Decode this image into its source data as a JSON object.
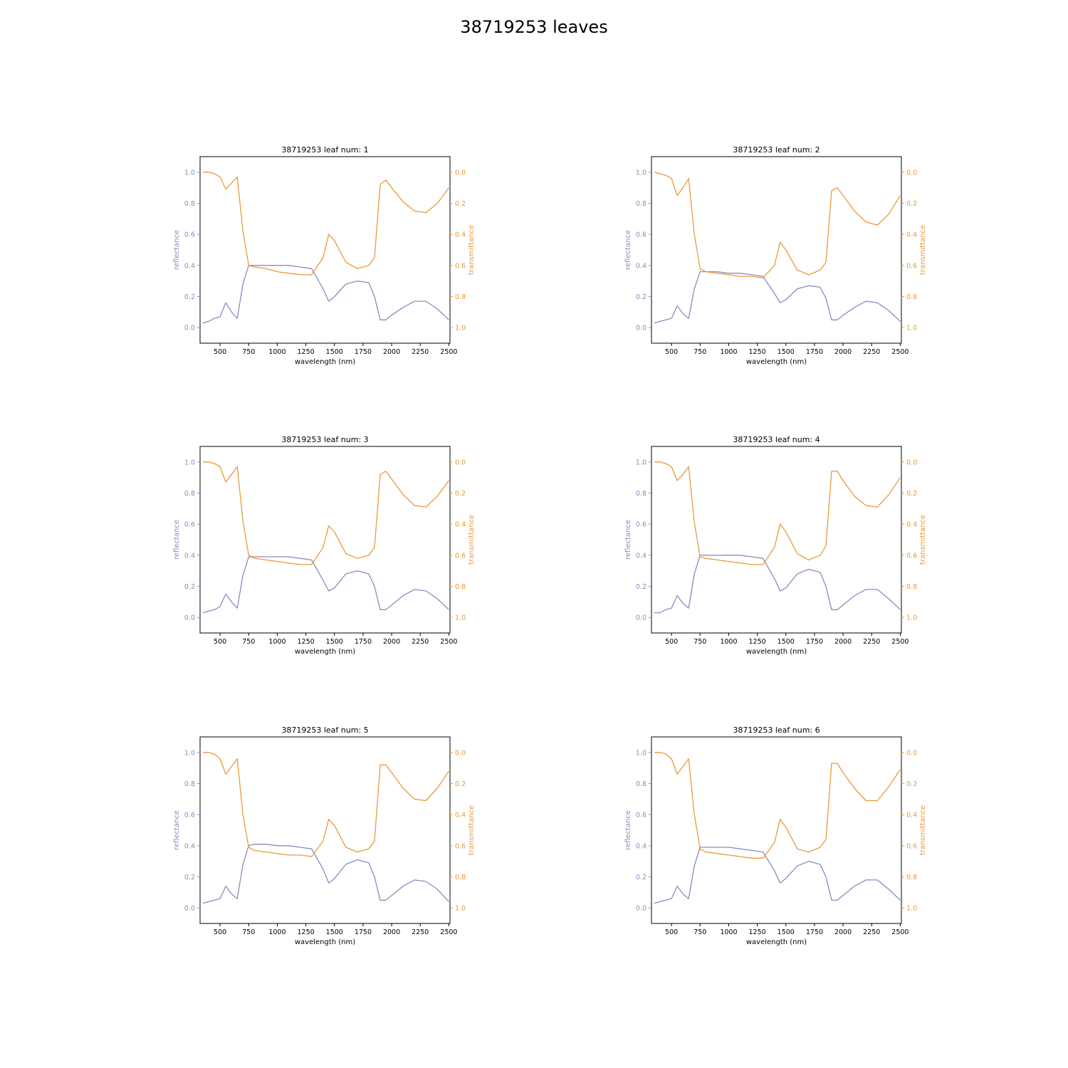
{
  "figure": {
    "title": "38719253 leaves",
    "colors": {
      "reflectance": "#8f88c0",
      "transmittance": "#e99a3a",
      "axes": "#000000"
    }
  },
  "chart_data": [
    {
      "type": "line",
      "title": "38719253 leaf num: 1",
      "xlabel": "wavelength (nm)",
      "ylabel_left": "reflectance",
      "ylabel_right": "transmittance",
      "xlim": [
        325,
        2510
      ],
      "ylim_left": [
        -0.1,
        1.1
      ],
      "ylim_right": [
        1.1,
        -0.1
      ],
      "right_axis_inverted": true,
      "xticks": [
        500,
        750,
        1000,
        1250,
        1500,
        1750,
        2000,
        2250,
        2500
      ],
      "yticks_left": [
        0.0,
        0.2,
        0.4,
        0.6,
        0.8,
        1.0
      ],
      "yticks_right": [
        0.0,
        0.2,
        0.4,
        0.6,
        0.8,
        1.0
      ],
      "grid": false,
      "x": [
        350,
        400,
        450,
        500,
        550,
        600,
        650,
        700,
        750,
        800,
        900,
        1000,
        1100,
        1200,
        1300,
        1400,
        1450,
        1500,
        1600,
        1700,
        1800,
        1850,
        1900,
        1950,
        2000,
        2100,
        2200,
        2300,
        2400,
        2500
      ],
      "series": [
        {
          "name": "reflectance",
          "axis": "left",
          "values": [
            0.03,
            0.04,
            0.06,
            0.07,
            0.16,
            0.1,
            0.06,
            0.28,
            0.4,
            0.4,
            0.4,
            0.4,
            0.4,
            0.39,
            0.38,
            0.25,
            0.17,
            0.2,
            0.28,
            0.3,
            0.29,
            0.2,
            0.05,
            0.05,
            0.08,
            0.13,
            0.17,
            0.17,
            0.12,
            0.05
          ]
        },
        {
          "name": "transmittance",
          "axis": "right",
          "values": [
            0.0,
            0.0,
            0.01,
            0.03,
            0.11,
            0.07,
            0.03,
            0.38,
            0.6,
            0.61,
            0.62,
            0.64,
            0.65,
            0.66,
            0.66,
            0.55,
            0.4,
            0.44,
            0.58,
            0.62,
            0.6,
            0.55,
            0.08,
            0.05,
            0.1,
            0.19,
            0.25,
            0.26,
            0.2,
            0.1
          ]
        }
      ]
    },
    {
      "type": "line",
      "title": "38719253 leaf num: 2",
      "xlabel": "wavelength (nm)",
      "ylabel_left": "reflectance",
      "ylabel_right": "transmittance",
      "xlim": [
        325,
        2510
      ],
      "ylim_left": [
        -0.1,
        1.1
      ],
      "ylim_right": [
        1.1,
        -0.1
      ],
      "right_axis_inverted": true,
      "xticks": [
        500,
        750,
        1000,
        1250,
        1500,
        1750,
        2000,
        2250,
        2500
      ],
      "yticks_left": [
        0.0,
        0.2,
        0.4,
        0.6,
        0.8,
        1.0
      ],
      "yticks_right": [
        0.0,
        0.2,
        0.4,
        0.6,
        0.8,
        1.0
      ],
      "grid": false,
      "x": [
        350,
        400,
        450,
        500,
        550,
        600,
        650,
        700,
        750,
        800,
        900,
        1000,
        1100,
        1200,
        1300,
        1400,
        1450,
        1500,
        1600,
        1700,
        1800,
        1850,
        1900,
        1950,
        2000,
        2100,
        2200,
        2300,
        2400,
        2500
      ],
      "series": [
        {
          "name": "reflectance",
          "axis": "left",
          "values": [
            0.03,
            0.04,
            0.05,
            0.06,
            0.14,
            0.09,
            0.06,
            0.25,
            0.36,
            0.36,
            0.36,
            0.35,
            0.35,
            0.34,
            0.33,
            0.22,
            0.16,
            0.18,
            0.25,
            0.27,
            0.26,
            0.19,
            0.05,
            0.05,
            0.08,
            0.13,
            0.17,
            0.16,
            0.11,
            0.04
          ]
        },
        {
          "name": "transmittance",
          "axis": "right",
          "values": [
            0.0,
            0.01,
            0.02,
            0.04,
            0.15,
            0.1,
            0.04,
            0.4,
            0.62,
            0.64,
            0.65,
            0.66,
            0.67,
            0.67,
            0.68,
            0.6,
            0.45,
            0.5,
            0.63,
            0.66,
            0.63,
            0.58,
            0.12,
            0.1,
            0.15,
            0.25,
            0.32,
            0.34,
            0.27,
            0.15
          ]
        }
      ]
    },
    {
      "type": "line",
      "title": "38719253 leaf num: 3",
      "xlabel": "wavelength (nm)",
      "ylabel_left": "reflectance",
      "ylabel_right": "transmittance",
      "xlim": [
        325,
        2510
      ],
      "ylim_left": [
        -0.1,
        1.1
      ],
      "ylim_right": [
        1.1,
        -0.1
      ],
      "right_axis_inverted": true,
      "xticks": [
        500,
        750,
        1000,
        1250,
        1500,
        1750,
        2000,
        2250,
        2500
      ],
      "yticks_left": [
        0.0,
        0.2,
        0.4,
        0.6,
        0.8,
        1.0
      ],
      "yticks_right": [
        0.0,
        0.2,
        0.4,
        0.6,
        0.8,
        1.0
      ],
      "grid": false,
      "x": [
        350,
        400,
        450,
        500,
        550,
        600,
        650,
        700,
        750,
        800,
        900,
        1000,
        1100,
        1200,
        1300,
        1400,
        1450,
        1500,
        1600,
        1700,
        1800,
        1850,
        1900,
        1950,
        2000,
        2100,
        2200,
        2300,
        2400,
        2500
      ],
      "series": [
        {
          "name": "reflectance",
          "axis": "left",
          "values": [
            0.03,
            0.04,
            0.05,
            0.07,
            0.15,
            0.1,
            0.06,
            0.27,
            0.39,
            0.39,
            0.39,
            0.39,
            0.39,
            0.38,
            0.37,
            0.24,
            0.17,
            0.19,
            0.28,
            0.3,
            0.28,
            0.2,
            0.05,
            0.05,
            0.08,
            0.14,
            0.18,
            0.17,
            0.12,
            0.05
          ]
        },
        {
          "name": "transmittance",
          "axis": "right",
          "values": [
            0.0,
            0.0,
            0.01,
            0.03,
            0.13,
            0.08,
            0.03,
            0.38,
            0.6,
            0.62,
            0.63,
            0.64,
            0.65,
            0.66,
            0.66,
            0.55,
            0.41,
            0.45,
            0.59,
            0.62,
            0.6,
            0.55,
            0.08,
            0.06,
            0.11,
            0.21,
            0.28,
            0.29,
            0.22,
            0.12
          ]
        }
      ]
    },
    {
      "type": "line",
      "title": "38719253 leaf num: 4",
      "xlabel": "wavelength (nm)",
      "ylabel_left": "reflectance",
      "ylabel_right": "transmittance",
      "xlim": [
        325,
        2510
      ],
      "ylim_left": [
        -0.1,
        1.1
      ],
      "ylim_right": [
        1.1,
        -0.1
      ],
      "right_axis_inverted": true,
      "xticks": [
        500,
        750,
        1000,
        1250,
        1500,
        1750,
        2000,
        2250,
        2500
      ],
      "yticks_left": [
        0.0,
        0.2,
        0.4,
        0.6,
        0.8,
        1.0
      ],
      "yticks_right": [
        0.0,
        0.2,
        0.4,
        0.6,
        0.8,
        1.0
      ],
      "grid": false,
      "x": [
        350,
        400,
        450,
        500,
        550,
        600,
        650,
        700,
        750,
        800,
        900,
        1000,
        1100,
        1200,
        1300,
        1400,
        1450,
        1500,
        1600,
        1700,
        1800,
        1850,
        1900,
        1950,
        2000,
        2100,
        2200,
        2300,
        2400,
        2500
      ],
      "series": [
        {
          "name": "reflectance",
          "axis": "left",
          "values": [
            0.03,
            0.03,
            0.05,
            0.06,
            0.14,
            0.09,
            0.06,
            0.28,
            0.4,
            0.4,
            0.4,
            0.4,
            0.4,
            0.39,
            0.38,
            0.25,
            0.17,
            0.19,
            0.28,
            0.31,
            0.29,
            0.2,
            0.05,
            0.05,
            0.08,
            0.14,
            0.18,
            0.18,
            0.12,
            0.05
          ]
        },
        {
          "name": "transmittance",
          "axis": "right",
          "values": [
            0.0,
            0.0,
            0.01,
            0.03,
            0.12,
            0.08,
            0.03,
            0.39,
            0.61,
            0.62,
            0.63,
            0.64,
            0.65,
            0.66,
            0.66,
            0.55,
            0.4,
            0.45,
            0.59,
            0.63,
            0.6,
            0.54,
            0.06,
            0.06,
            0.12,
            0.22,
            0.28,
            0.29,
            0.21,
            0.1
          ]
        }
      ]
    },
    {
      "type": "line",
      "title": "38719253 leaf num: 5",
      "xlabel": "wavelength (nm)",
      "ylabel_left": "reflectance",
      "ylabel_right": "transmittance",
      "xlim": [
        325,
        2510
      ],
      "ylim_left": [
        -0.1,
        1.1
      ],
      "ylim_right": [
        1.1,
        -0.1
      ],
      "right_axis_inverted": true,
      "xticks": [
        500,
        750,
        1000,
        1250,
        1500,
        1750,
        2000,
        2250,
        2500
      ],
      "yticks_left": [
        0.0,
        0.2,
        0.4,
        0.6,
        0.8,
        1.0
      ],
      "yticks_right": [
        0.0,
        0.2,
        0.4,
        0.6,
        0.8,
        1.0
      ],
      "grid": false,
      "x": [
        350,
        400,
        450,
        500,
        550,
        600,
        650,
        700,
        750,
        800,
        900,
        1000,
        1100,
        1200,
        1300,
        1400,
        1450,
        1500,
        1600,
        1700,
        1800,
        1850,
        1900,
        1950,
        2000,
        2100,
        2200,
        2300,
        2400,
        2500
      ],
      "series": [
        {
          "name": "reflectance",
          "axis": "left",
          "values": [
            0.03,
            0.04,
            0.05,
            0.06,
            0.14,
            0.09,
            0.06,
            0.28,
            0.4,
            0.41,
            0.41,
            0.4,
            0.4,
            0.39,
            0.38,
            0.25,
            0.16,
            0.19,
            0.28,
            0.31,
            0.29,
            0.2,
            0.05,
            0.05,
            0.08,
            0.14,
            0.18,
            0.17,
            0.12,
            0.04
          ]
        },
        {
          "name": "transmittance",
          "axis": "right",
          "values": [
            0.0,
            0.0,
            0.01,
            0.04,
            0.14,
            0.09,
            0.04,
            0.4,
            0.61,
            0.63,
            0.64,
            0.65,
            0.66,
            0.66,
            0.67,
            0.57,
            0.43,
            0.47,
            0.61,
            0.64,
            0.62,
            0.57,
            0.08,
            0.08,
            0.13,
            0.23,
            0.3,
            0.31,
            0.23,
            0.12
          ]
        }
      ]
    },
    {
      "type": "line",
      "title": "38719253 leaf num: 6",
      "xlabel": "wavelength (nm)",
      "ylabel_left": "reflectance",
      "ylabel_right": "transmittance",
      "xlim": [
        325,
        2510
      ],
      "ylim_left": [
        -0.1,
        1.1
      ],
      "ylim_right": [
        1.1,
        -0.1
      ],
      "right_axis_inverted": true,
      "xticks": [
        500,
        750,
        1000,
        1250,
        1500,
        1750,
        2000,
        2250,
        2500
      ],
      "yticks_left": [
        0.0,
        0.2,
        0.4,
        0.6,
        0.8,
        1.0
      ],
      "yticks_right": [
        0.0,
        0.2,
        0.4,
        0.6,
        0.8,
        1.0
      ],
      "grid": false,
      "x": [
        350,
        400,
        450,
        500,
        550,
        600,
        650,
        700,
        750,
        800,
        900,
        1000,
        1100,
        1200,
        1300,
        1400,
        1450,
        1500,
        1600,
        1700,
        1800,
        1850,
        1900,
        1950,
        2000,
        2100,
        2200,
        2300,
        2400,
        2500
      ],
      "series": [
        {
          "name": "reflectance",
          "axis": "left",
          "values": [
            0.03,
            0.04,
            0.05,
            0.06,
            0.14,
            0.09,
            0.06,
            0.27,
            0.39,
            0.39,
            0.39,
            0.39,
            0.38,
            0.37,
            0.36,
            0.24,
            0.16,
            0.19,
            0.27,
            0.3,
            0.28,
            0.2,
            0.05,
            0.05,
            0.08,
            0.14,
            0.18,
            0.18,
            0.12,
            0.05
          ]
        },
        {
          "name": "transmittance",
          "axis": "right",
          "values": [
            0.0,
            0.0,
            0.01,
            0.04,
            0.14,
            0.09,
            0.04,
            0.4,
            0.62,
            0.64,
            0.65,
            0.66,
            0.67,
            0.68,
            0.68,
            0.58,
            0.43,
            0.48,
            0.62,
            0.64,
            0.61,
            0.56,
            0.07,
            0.07,
            0.13,
            0.23,
            0.31,
            0.31,
            0.22,
            0.11
          ]
        }
      ]
    }
  ]
}
